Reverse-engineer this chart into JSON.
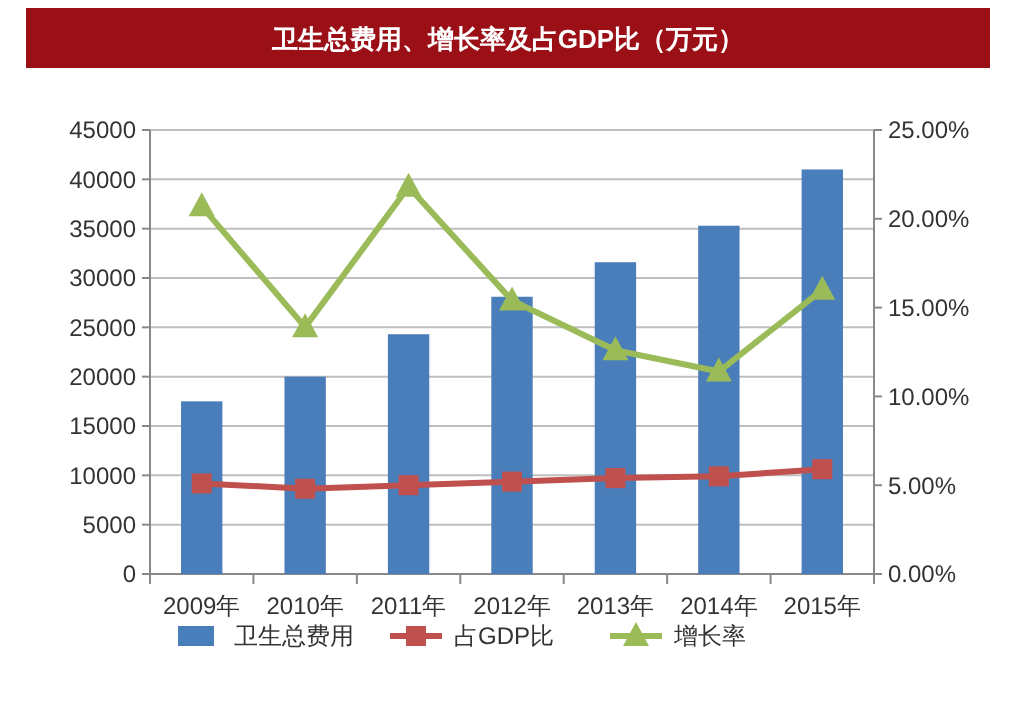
{
  "chart_data": {
    "type": "bar",
    "title": "卫生总费用、增长率及占GDP比（万元）",
    "categories": [
      "2009年",
      "2010年",
      "2011年",
      "2012年",
      "2013年",
      "2014年",
      "2015年"
    ],
    "series": [
      {
        "name": "卫生总费用",
        "color": "#4a7ebb",
        "values": [
          17500,
          20000,
          24300,
          28100,
          31600,
          35300,
          41000
        ]
      },
      {
        "name": "占GDP比",
        "type": "line",
        "axis": "y2",
        "marker": "square",
        "color": "#c0504d",
        "values": [
          5.1,
          4.8,
          5.0,
          5.2,
          5.4,
          5.5,
          5.9
        ]
      },
      {
        "name": "增长率",
        "type": "line",
        "axis": "y2",
        "marker": "triangle",
        "color": "#9bbb59",
        "values": [
          20.7,
          13.9,
          21.8,
          15.4,
          12.6,
          11.4,
          16.0
        ]
      }
    ],
    "ylim": [
      0,
      45000
    ],
    "yticks": [
      0,
      5000,
      10000,
      15000,
      20000,
      25000,
      30000,
      35000,
      40000,
      45000
    ],
    "y2lim": [
      0,
      25
    ],
    "y2ticks": [
      {
        "value": 0,
        "label": "0.00%"
      },
      {
        "value": 5,
        "label": "5.00%"
      },
      {
        "value": 10,
        "label": "10.00%"
      },
      {
        "value": 15,
        "label": "15.00%"
      },
      {
        "value": 20,
        "label": "20.00%"
      },
      {
        "value": 25,
        "label": "25.00%"
      }
    ],
    "grid": "y",
    "legend": "bottom"
  }
}
